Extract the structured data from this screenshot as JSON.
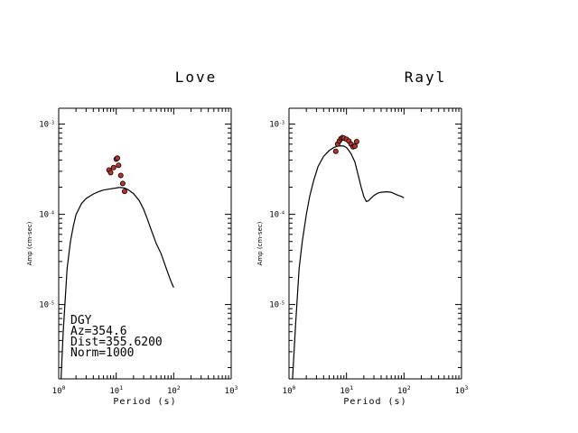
{
  "chart_data": [
    {
      "type": "line",
      "title": "Love",
      "xlabel": "Period (s)",
      "ylabel": "Amp (cm-sec)",
      "xscale": "log",
      "yscale": "log",
      "xlim": [
        1,
        1000
      ],
      "ylim": [
        1.5e-06,
        0.0015
      ],
      "x_ticks": [
        "10^0",
        "10^1",
        "10^2",
        "10^3"
      ],
      "y_ticks": [
        "10^-3",
        "10^-4",
        "10^-5"
      ],
      "annotation_lines": [
        "DGY",
        "Az=354.6",
        "Dist=355.6200",
        "Norm=1000"
      ],
      "series": [
        {
          "style": "line",
          "color": "#000000",
          "points": [
            [
              1.1,
              1.5e-06
            ],
            [
              1.2,
              5e-06
            ],
            [
              1.4,
              2.5e-05
            ],
            [
              1.6,
              5e-05
            ],
            [
              1.8,
              7.5e-05
            ],
            [
              2.0,
              9.95e-05
            ],
            [
              2.5,
              0.000132
            ],
            [
              3,
              0.00015
            ],
            [
              4,
              0.000168
            ],
            [
              5,
              0.000179
            ],
            [
              6,
              0.000186
            ],
            [
              8,
              0.000192
            ],
            [
              10,
              0.000196
            ],
            [
              11,
              0.000198
            ],
            [
              12,
              0.000198
            ],
            [
              14,
              0.000196
            ],
            [
              16,
              0.000188
            ],
            [
              20,
              0.00017
            ],
            [
              25,
              0.000143
            ],
            [
              30,
              0.000114
            ],
            [
              35,
              8.8e-05
            ],
            [
              40,
              6.9e-05
            ],
            [
              50,
              4.7e-05
            ],
            [
              60,
              3.7e-05
            ],
            [
              70,
              2.8e-05
            ],
            [
              80,
              2.2e-05
            ],
            [
              90,
              1.8e-05
            ],
            [
              100,
              1.55e-05
            ]
          ]
        },
        {
          "style": "points",
          "color": "#c0302a",
          "points": [
            [
              7.5,
              0.00031
            ],
            [
              8.0,
              0.00029
            ],
            [
              9.0,
              0.00033
            ],
            [
              10.0,
              0.00041
            ],
            [
              10.5,
              0.00042
            ],
            [
              11.0,
              0.00035
            ],
            [
              12.0,
              0.00027
            ],
            [
              13.0,
              0.00022
            ],
            [
              14.0,
              0.00018
            ]
          ]
        }
      ]
    },
    {
      "type": "line",
      "title": "Rayl",
      "xlabel": "Period (s)",
      "ylabel": "Amp (cm-sec)",
      "xscale": "log",
      "yscale": "log",
      "xlim": [
        1,
        1000
      ],
      "ylim": [
        1.5e-06,
        0.0015
      ],
      "x_ticks": [
        "10^0",
        "10^1",
        "10^2",
        "10^3"
      ],
      "y_ticks": [
        "10^-3",
        "10^-4",
        "10^-5"
      ],
      "series": [
        {
          "style": "line",
          "color": "#000000",
          "points": [
            [
              1.15,
              1.5e-06
            ],
            [
              1.3,
              6e-06
            ],
            [
              1.5,
              2.5e-05
            ],
            [
              1.7,
              5e-05
            ],
            [
              2.0,
              9.95e-05
            ],
            [
              2.3,
              0.00016
            ],
            [
              2.7,
              0.00024
            ],
            [
              3.2,
              0.00034
            ],
            [
              4,
              0.00044
            ],
            [
              5,
              0.00051
            ],
            [
              6,
              0.00055
            ],
            [
              7,
              0.00057
            ],
            [
              8,
              0.000575
            ],
            [
              9,
              0.00057
            ],
            [
              10,
              0.00055
            ],
            [
              11,
              0.00051
            ],
            [
              12,
              0.00047
            ],
            [
              14,
              0.00038
            ],
            [
              16,
              0.00027
            ],
            [
              18,
              0.0002
            ],
            [
              20,
              0.000158
            ],
            [
              22,
              0.000139
            ],
            [
              24,
              0.000141
            ],
            [
              27,
              0.000152
            ],
            [
              30,
              0.000162
            ],
            [
              35,
              0.000172
            ],
            [
              40,
              0.000176
            ],
            [
              50,
              0.000178
            ],
            [
              60,
              0.000176
            ],
            [
              70,
              0.000168
            ],
            [
              80,
              0.000162
            ],
            [
              90,
              0.000158
            ],
            [
              100,
              0.000152
            ]
          ]
        },
        {
          "style": "points",
          "color": "#c0302a",
          "points": [
            [
              6.5,
              0.0005
            ],
            [
              7.0,
              0.0006
            ],
            [
              7.5,
              0.00065
            ],
            [
              8.0,
              0.00069
            ],
            [
              8.5,
              0.00071
            ],
            [
              9.0,
              0.0007
            ],
            [
              10.0,
              0.00068
            ],
            [
              11.0,
              0.00065
            ],
            [
              12.0,
              0.0006
            ],
            [
              13.0,
              0.00056
            ],
            [
              14.0,
              0.00057
            ],
            [
              15.0,
              0.00064
            ]
          ]
        }
      ]
    }
  ]
}
